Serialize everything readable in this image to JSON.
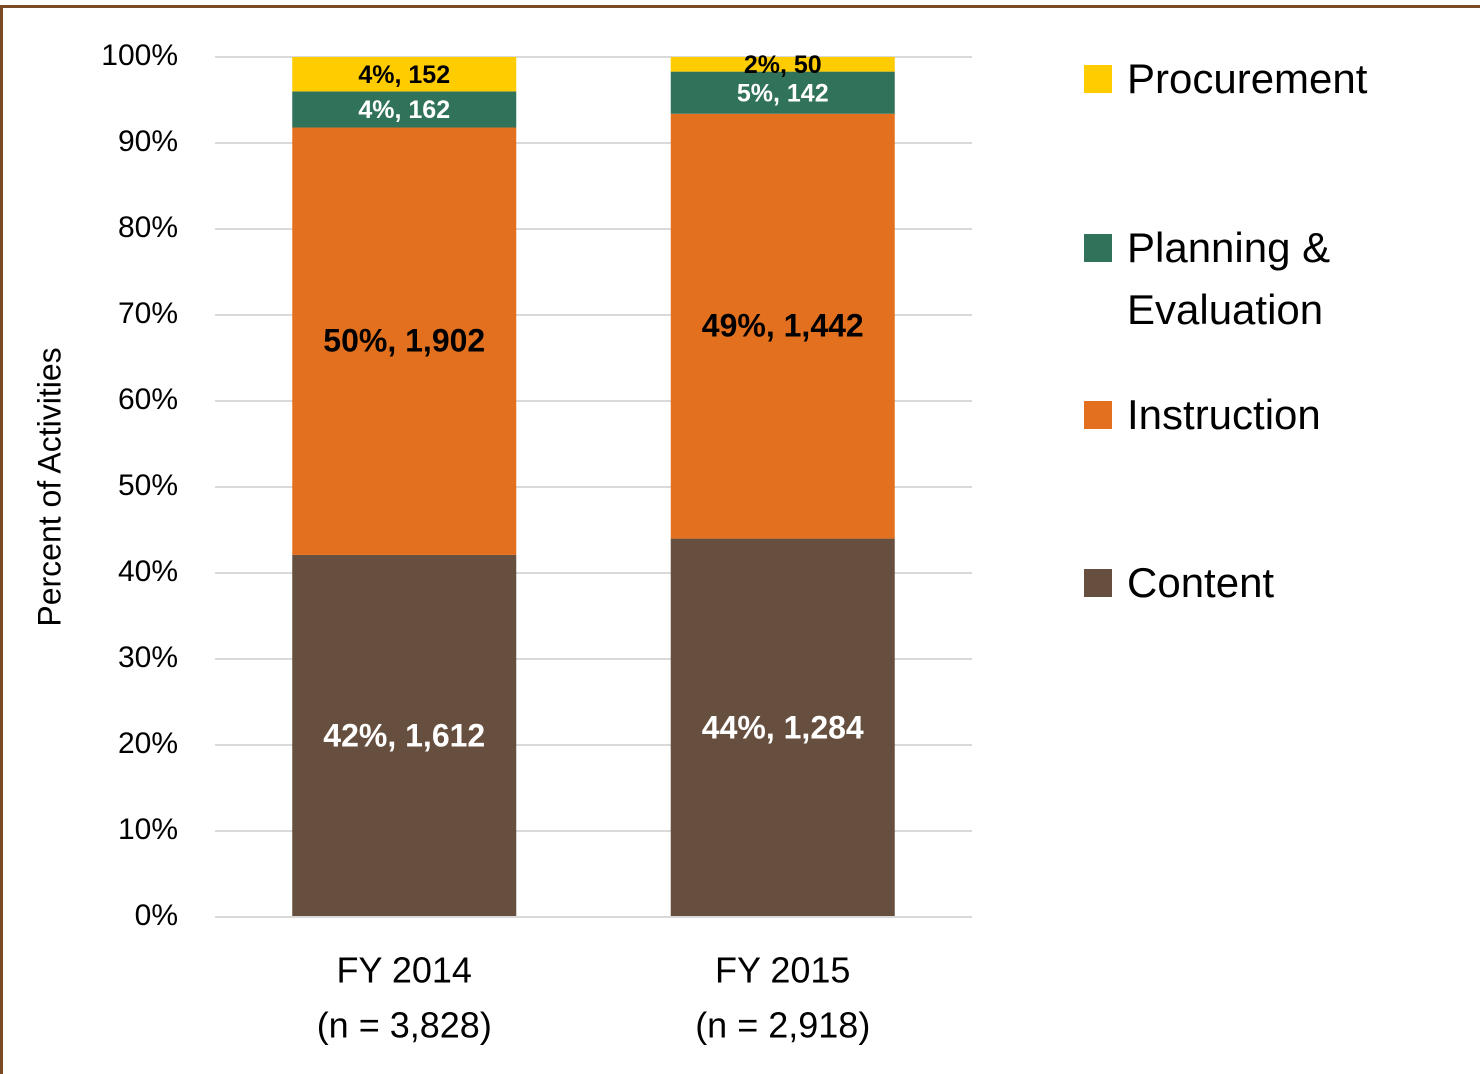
{
  "chart_data": {
    "type": "stacked_bar",
    "y_label": "Percent of Activities",
    "categories": [
      [
        "FY 2014",
        "(n = 3,828)"
      ],
      [
        "FY 2015",
        "(n = 2,918)"
      ]
    ],
    "series": [
      {
        "name": "Content",
        "color": "#674f3f",
        "label_color": "#ffffff",
        "values": [
          42.1,
          44.0
        ],
        "value_labels": [
          "42%, 1,612",
          "44%, 1,284"
        ]
      },
      {
        "name": "Instruction",
        "color": "#e3701e",
        "label_color": "#000000",
        "values": [
          49.7,
          49.4
        ],
        "value_labels": [
          "50%, 1,902",
          "49%, 1,442"
        ]
      },
      {
        "name": "Planning & Evaluation",
        "color": "#31735a",
        "label_color": "#ffffff",
        "values": [
          4.2,
          4.9
        ],
        "value_labels": [
          "4%, 162",
          "5%, 142"
        ]
      },
      {
        "name": "Procurement",
        "color": "#ffcc00",
        "label_color": "#000000",
        "values": [
          4.0,
          1.7
        ],
        "value_labels": [
          "4%, 152",
          "2%, 50"
        ]
      }
    ],
    "ylim": [
      0,
      100
    ],
    "yticks": [
      {
        "value": 0,
        "label": "0%"
      },
      {
        "value": 10,
        "label": "10%"
      },
      {
        "value": 20,
        "label": "20%"
      },
      {
        "value": 30,
        "label": "30%"
      },
      {
        "value": 40,
        "label": "40%"
      },
      {
        "value": 50,
        "label": "50%"
      },
      {
        "value": 60,
        "label": "60%"
      },
      {
        "value": 70,
        "label": "70%"
      },
      {
        "value": 80,
        "label": "80%"
      },
      {
        "value": 90,
        "label": "90%"
      },
      {
        "value": 100,
        "label": "100%"
      }
    ],
    "grid": true,
    "legend": "right"
  }
}
